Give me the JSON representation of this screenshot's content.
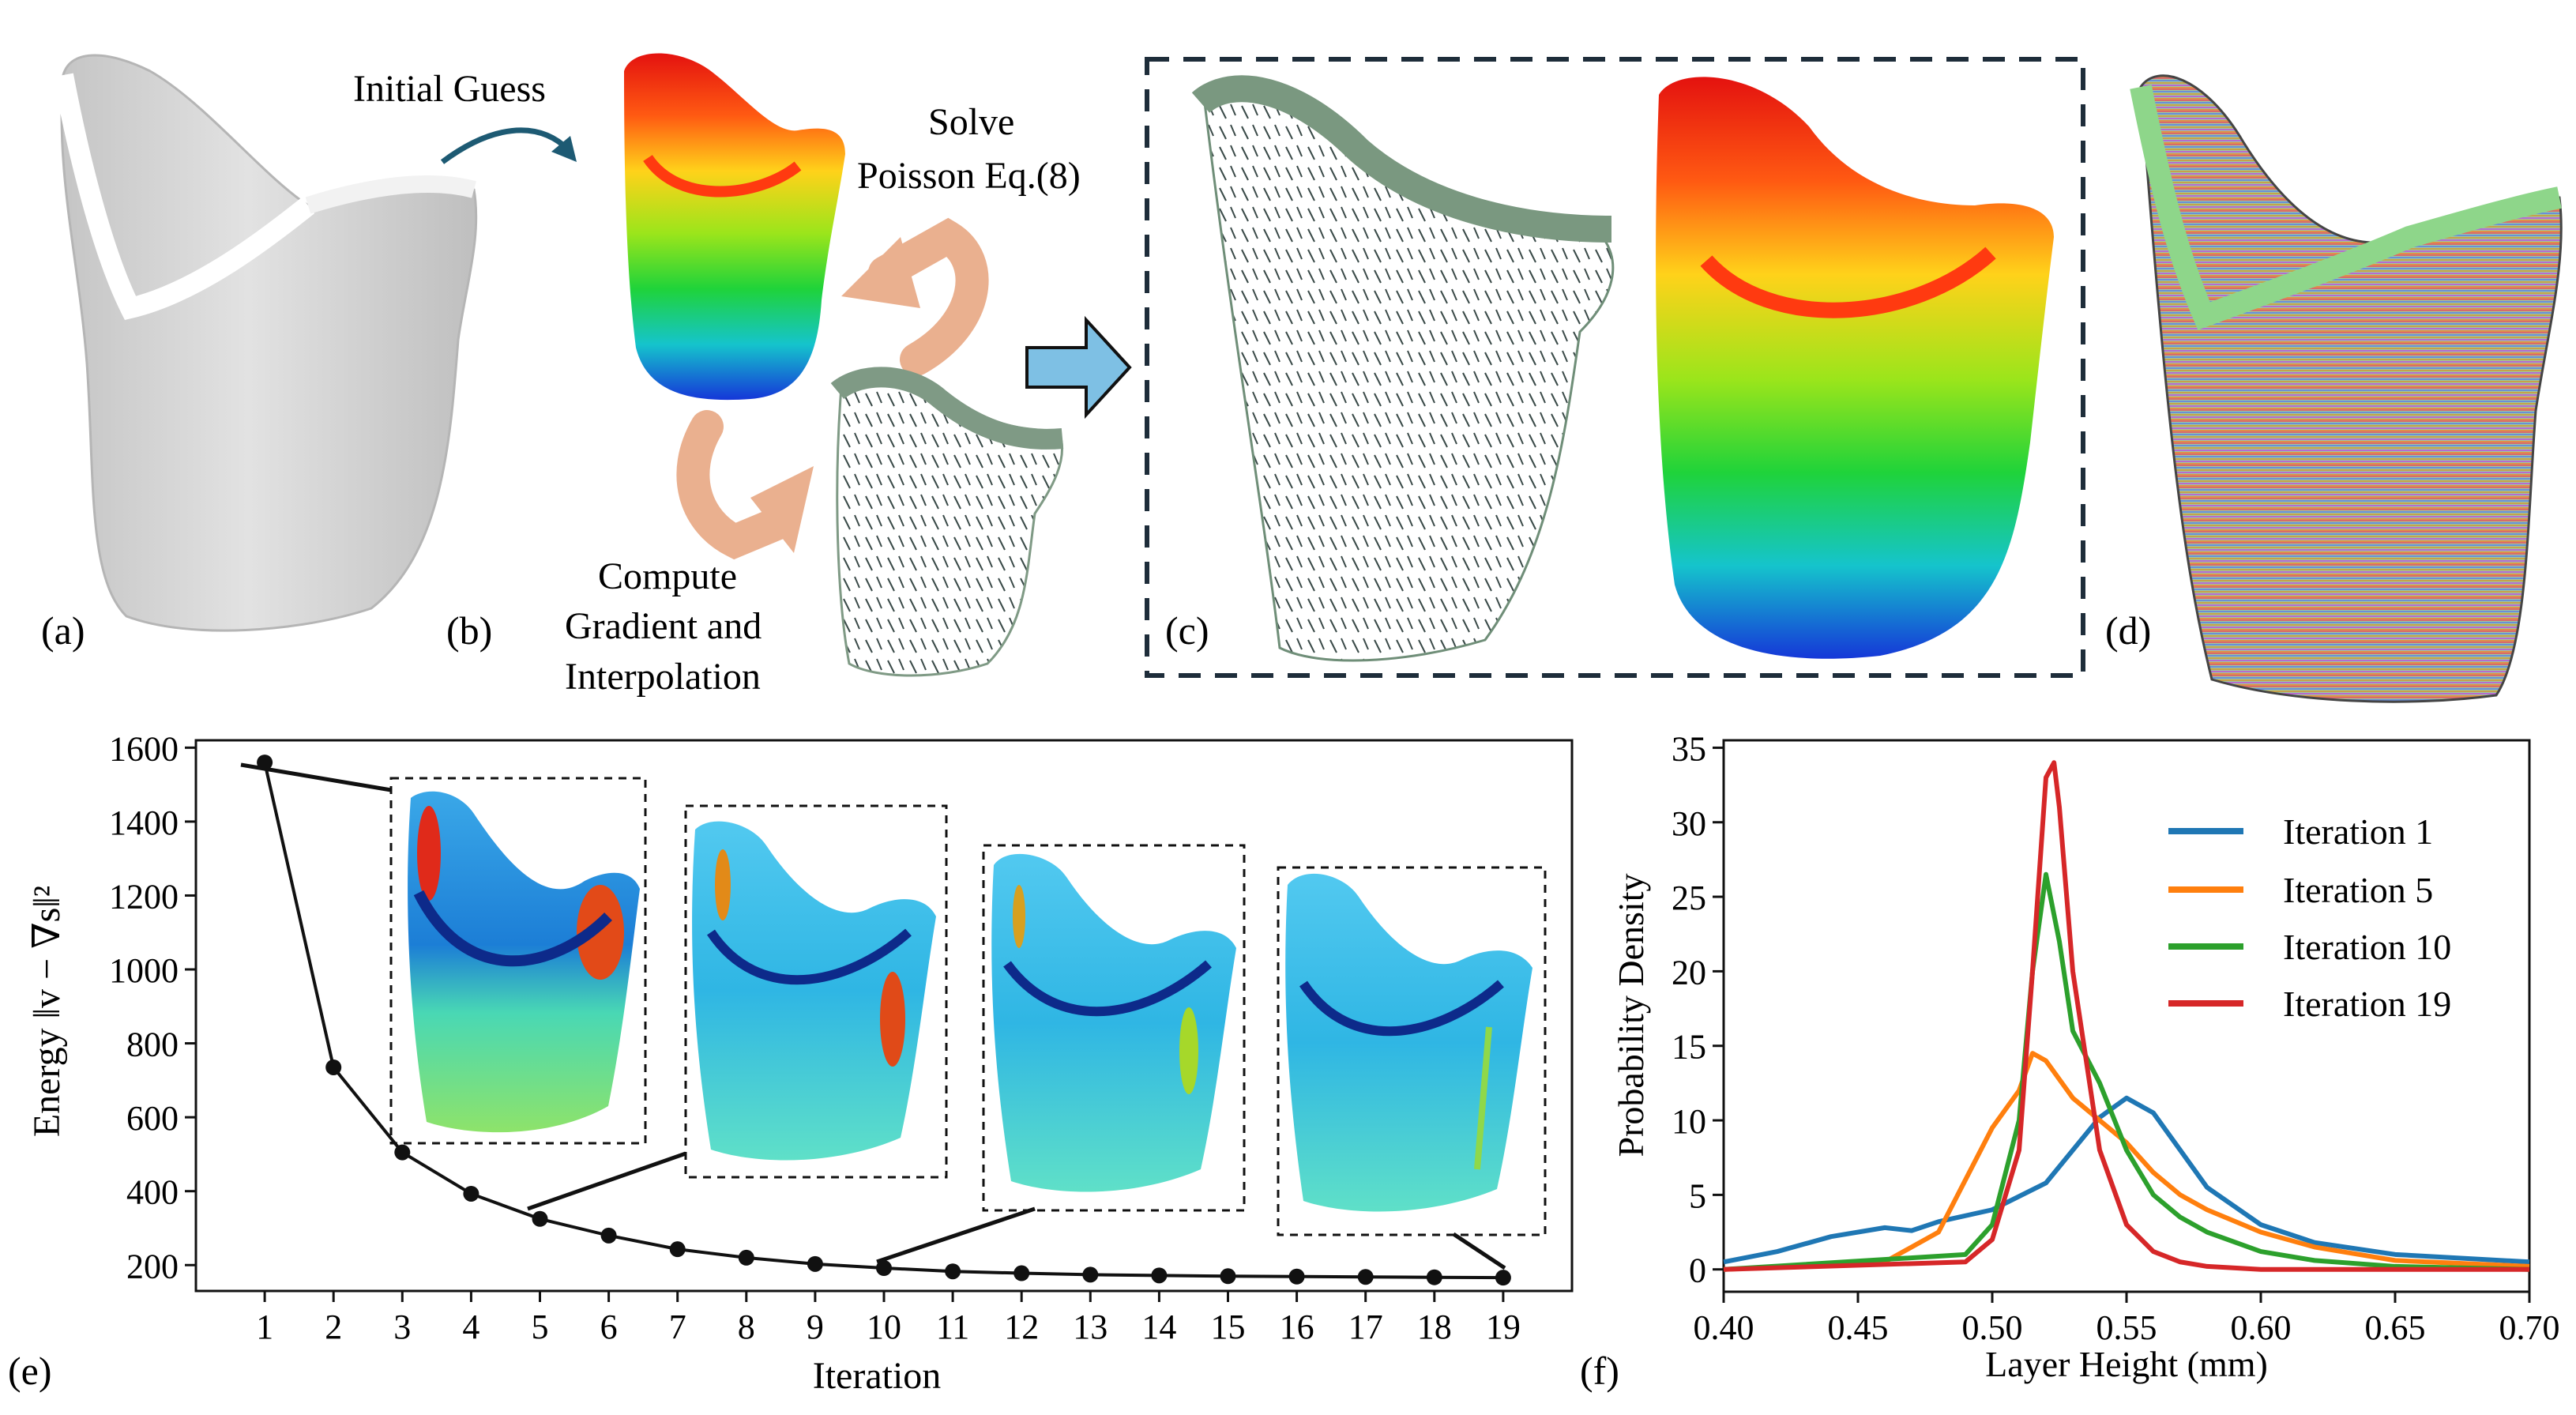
{
  "panels": {
    "a": {
      "label": "(a)"
    },
    "b": {
      "label": "(b)",
      "initial_guess": "Initial Guess",
      "solve_line1": "Solve",
      "solve_line2": "Poisson Eq.(8)",
      "compute_line1": "Compute",
      "compute_line2": "Gradient and",
      "compute_line3": "Interpolation"
    },
    "c": {
      "label": "(c)"
    },
    "d": {
      "label": "(d)"
    },
    "e": {
      "label": "(e)"
    },
    "f": {
      "label": "(f)"
    }
  },
  "colors": {
    "series_blue": "#1f77b4",
    "series_orange": "#ff7f0e",
    "series_green": "#2ca02c",
    "series_red": "#d62728",
    "dashed_box": "#1e2d3a",
    "arrow_teal": "#1d5a73",
    "arrow_salmon": "#eab08f",
    "arrow_blue": "#7ec0e4"
  },
  "chart_data": [
    {
      "type": "line",
      "id": "e",
      "xlabel": "Iteration",
      "ylabel": "Energy ‖v − ∇s‖²",
      "x": [
        1,
        2,
        3,
        4,
        5,
        6,
        7,
        8,
        9,
        10,
        11,
        12,
        13,
        14,
        15,
        16,
        17,
        18,
        19
      ],
      "values": [
        1560,
        735,
        505,
        393,
        325,
        280,
        243,
        220,
        203,
        192,
        183,
        178,
        174,
        172,
        170,
        169,
        168,
        167,
        166
      ],
      "xlim": [
        0,
        20
      ],
      "ylim": [
        130,
        1620
      ],
      "yticks": [
        200,
        400,
        600,
        800,
        1000,
        1200,
        1400,
        1600
      ],
      "insets_linked_to_iterations": [
        1,
        5,
        10,
        19
      ]
    },
    {
      "type": "line",
      "id": "f",
      "xlabel": "Layer Height (mm)",
      "ylabel": "Probability Density",
      "xlim": [
        0.4,
        0.7
      ],
      "ylim": [
        -1.5,
        35.5
      ],
      "xticks": [
        "0.40",
        "0.45",
        "0.50",
        "0.55",
        "0.60",
        "0.65",
        "0.70"
      ],
      "yticks": [
        0,
        5,
        10,
        15,
        20,
        25,
        30,
        35
      ],
      "legend_position": "top-right",
      "series": [
        {
          "name": "Iteration 1",
          "x": [
            0.4,
            0.42,
            0.44,
            0.46,
            0.47,
            0.48,
            0.5,
            0.52,
            0.54,
            0.55,
            0.56,
            0.57,
            0.58,
            0.6,
            0.62,
            0.65,
            0.7
          ],
          "values": [
            0.5,
            1.2,
            2.2,
            2.8,
            2.6,
            3.2,
            4.0,
            5.8,
            10.2,
            11.5,
            10.5,
            8.0,
            5.5,
            3.0,
            1.8,
            1.0,
            0.5
          ]
        },
        {
          "name": "Iteration 5",
          "x": [
            0.4,
            0.46,
            0.48,
            0.49,
            0.5,
            0.51,
            0.515,
            0.52,
            0.53,
            0.54,
            0.55,
            0.56,
            0.57,
            0.58,
            0.6,
            0.62,
            0.65,
            0.7
          ],
          "values": [
            0.0,
            0.5,
            2.5,
            6.0,
            9.5,
            12.0,
            14.5,
            14.0,
            11.5,
            10.0,
            8.5,
            6.5,
            5.0,
            4.0,
            2.5,
            1.5,
            0.6,
            0.2
          ]
        },
        {
          "name": "Iteration 10",
          "x": [
            0.4,
            0.49,
            0.5,
            0.51,
            0.515,
            0.52,
            0.525,
            0.53,
            0.54,
            0.55,
            0.56,
            0.57,
            0.58,
            0.6,
            0.62,
            0.65,
            0.7
          ],
          "values": [
            0.0,
            1.0,
            3.0,
            10.0,
            20.0,
            26.5,
            22.0,
            16.0,
            12.5,
            8.0,
            5.0,
            3.5,
            2.5,
            1.2,
            0.6,
            0.2,
            0.0
          ]
        },
        {
          "name": "Iteration 19",
          "x": [
            0.4,
            0.49,
            0.5,
            0.51,
            0.515,
            0.52,
            0.523,
            0.525,
            0.53,
            0.54,
            0.55,
            0.56,
            0.57,
            0.58,
            0.6,
            0.7
          ],
          "values": [
            0.0,
            0.5,
            2.0,
            8.0,
            20.0,
            33.0,
            34.0,
            31.0,
            20.0,
            8.0,
            3.0,
            1.2,
            0.5,
            0.2,
            0.0,
            0.0
          ]
        }
      ]
    }
  ]
}
